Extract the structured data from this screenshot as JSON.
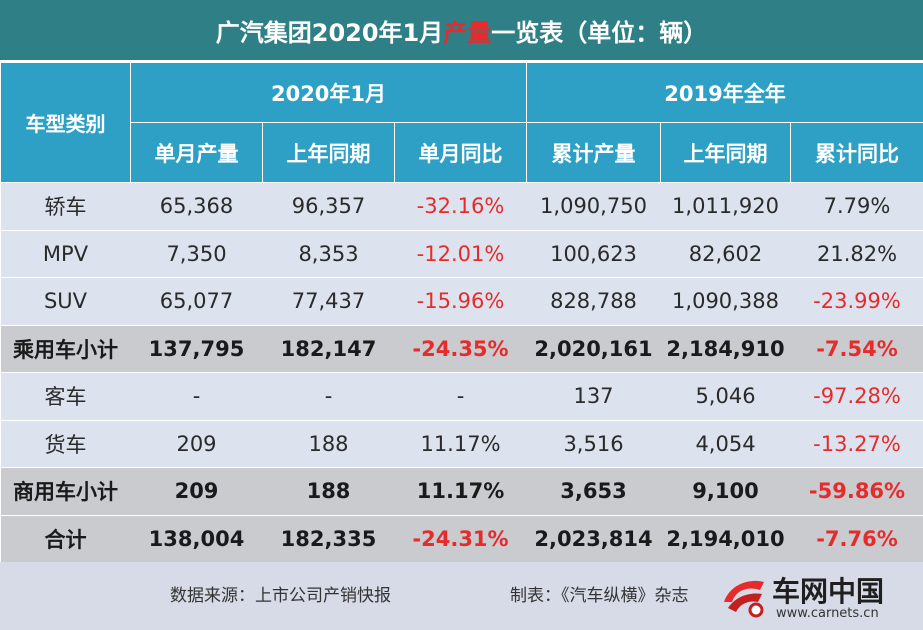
{
  "title": {
    "before": "广汽集团2020年1月",
    "highlight": "产量",
    "after": "一览表（单位：辆）"
  },
  "header": {
    "row_head": "车型类别",
    "group1": "2020年1月",
    "group2": "2019年全年",
    "cols": [
      "单月产量",
      "上年同期",
      "单月同比",
      "累计产量",
      "上年同期",
      "累计同比"
    ]
  },
  "rows": [
    {
      "label": "轿车",
      "values": [
        "65,368",
        "96,357",
        "-32.16%",
        "1,090,750",
        "1,011,920",
        "7.79%"
      ]
    },
    {
      "label": "MPV",
      "values": [
        "7,350",
        "8,353",
        "-12.01%",
        "100,623",
        "82,602",
        "21.82%"
      ]
    },
    {
      "label": "SUV",
      "values": [
        "65,077",
        "77,437",
        "-15.96%",
        "828,788",
        "1,090,388",
        "-23.99%"
      ]
    },
    {
      "label": "乘用车小计",
      "values": [
        "137,795",
        "182,147",
        "-24.35%",
        "2,020,161",
        "2,184,910",
        "-7.54%"
      ]
    },
    {
      "label": "客车",
      "values": [
        "-",
        "-",
        "-",
        "137",
        "5,046",
        "-97.28%"
      ]
    },
    {
      "label": "货车",
      "values": [
        "209",
        "188",
        "11.17%",
        "3,516",
        "4,054",
        "-13.27%"
      ]
    },
    {
      "label": "商用车小计",
      "values": [
        "209",
        "188",
        "11.17%",
        "3,653",
        "9,100",
        "-59.86%"
      ]
    },
    {
      "label": "合计",
      "values": [
        "138,004",
        "182,335",
        "-24.31%",
        "2,023,814",
        "2,194,010",
        "-7.76%"
      ]
    }
  ],
  "footer": {
    "source": "数据来源：上市公司产销快报",
    "maker": "制表：《汽车纵横》杂志"
  },
  "watermark": {
    "name": "车网中国",
    "url": "www.carnets.cn"
  },
  "colors": {
    "title_bg": "#2f7f86",
    "header_bg": "#2ea0c6",
    "row_light": "#dde3ee",
    "row_subtotal": "#c9cbcf",
    "negative": "#e52b2b"
  }
}
